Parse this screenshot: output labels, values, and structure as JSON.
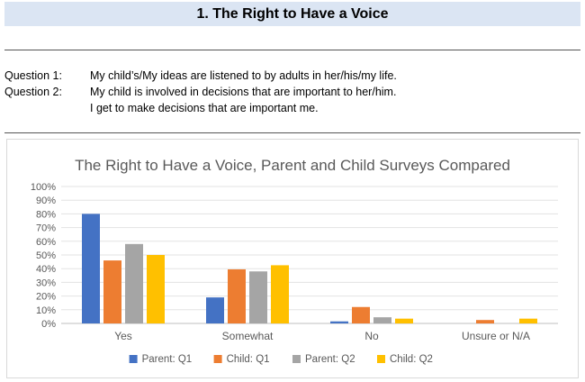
{
  "header": {
    "title": "1. The Right to Have a Voice"
  },
  "questions": [
    {
      "label": "Question 1:",
      "text": "My child’s/My ideas are listened to by adults in her/his/my life."
    },
    {
      "label": "Question 2:",
      "text": "My child is involved in decisions that are important to her/him."
    },
    {
      "label": "",
      "text": "I get to make decisions that are important me."
    }
  ],
  "chart_data": {
    "type": "bar",
    "title": "The Right to Have a Voice, Parent and Child Surveys Compared",
    "xlabel": "",
    "ylabel": "",
    "categories": [
      "Yes",
      "Somewhat",
      "No",
      "Unsure or N/A"
    ],
    "series": [
      {
        "name": "Parent: Q1",
        "color": "#4472c4",
        "values": [
          80,
          19,
          1.5,
          0
        ]
      },
      {
        "name": "Child: Q1",
        "color": "#ed7d31",
        "values": [
          46,
          39.5,
          12,
          2.5
        ]
      },
      {
        "name": "Parent: Q2",
        "color": "#a5a5a5",
        "values": [
          58,
          38,
          4.5,
          0
        ]
      },
      {
        "name": "Child: Q2",
        "color": "#ffc000",
        "values": [
          50,
          42.5,
          3.5,
          3.5
        ]
      }
    ],
    "ylim": [
      0,
      100
    ],
    "yticks": [
      "0%",
      "10%",
      "20%",
      "30%",
      "40%",
      "50%",
      "60%",
      "70%",
      "80%",
      "90%",
      "100%"
    ],
    "grid": true,
    "legend": "bottom"
  }
}
